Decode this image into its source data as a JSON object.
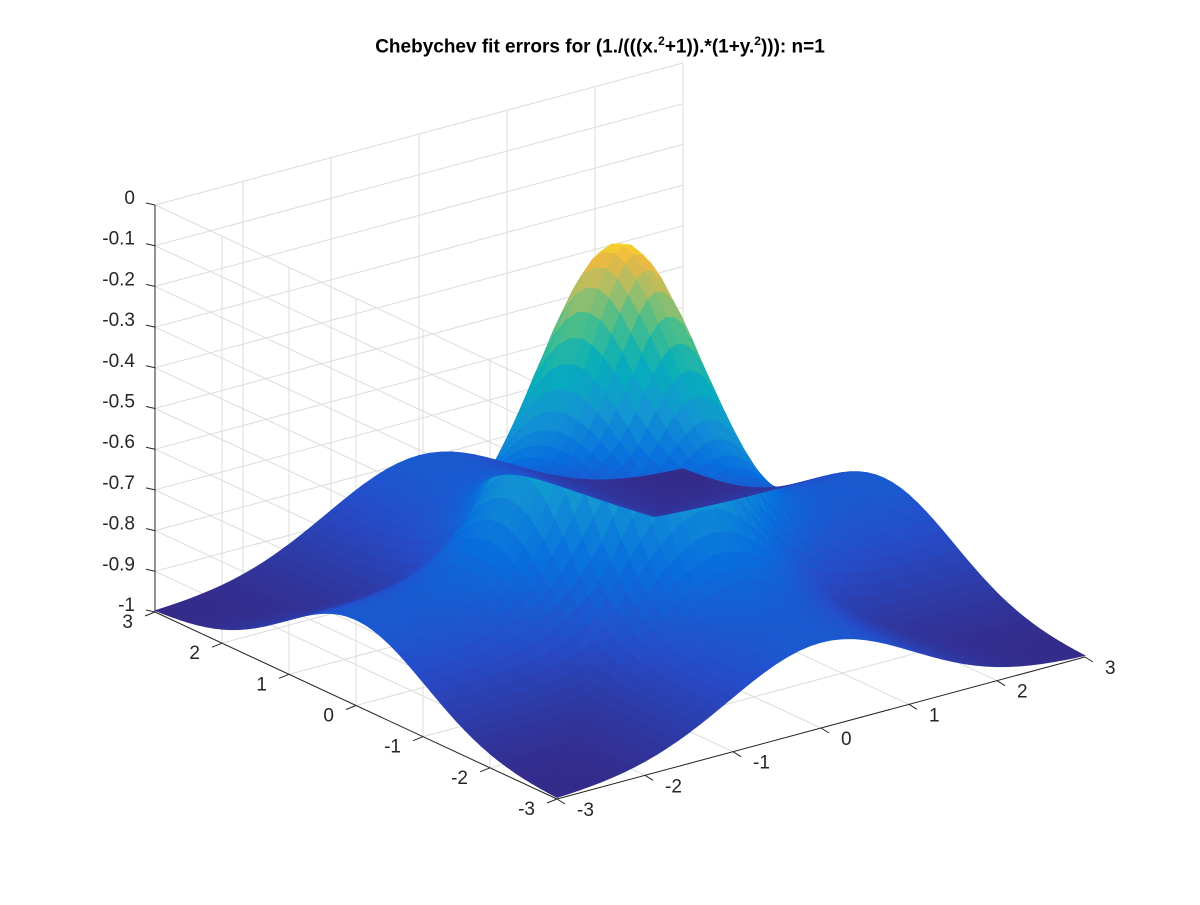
{
  "chart_data": {
    "type": "surface",
    "title_prefix": "Chebychev fit errors for (1./(((x.",
    "title_sup1": "2",
    "title_mid": "+1)).*(1+y.",
    "title_sup2": "2",
    "title_suffix": "))): n=1",
    "xlabel": "",
    "ylabel": "",
    "zlabel": "",
    "xlim": [
      -3,
      3
    ],
    "ylim": [
      -3,
      3
    ],
    "zlim": [
      -1,
      0
    ],
    "x_ticks": [
      "-3",
      "-2",
      "-1",
      "0",
      "1",
      "2",
      "3"
    ],
    "y_ticks": [
      "-3",
      "-2",
      "-1",
      "0",
      "1",
      "2",
      "3"
    ],
    "z_ticks": [
      "0",
      "-0.1",
      "-0.2",
      "-0.3",
      "-0.4",
      "-0.5",
      "-0.6",
      "-0.7",
      "-0.8",
      "-0.9",
      "-1"
    ],
    "grid": true,
    "colormap": "parula",
    "surface": {
      "z_at_center": -0.04,
      "z_at_axes_edges": -0.79,
      "z_at_corners": -1.0
    }
  }
}
